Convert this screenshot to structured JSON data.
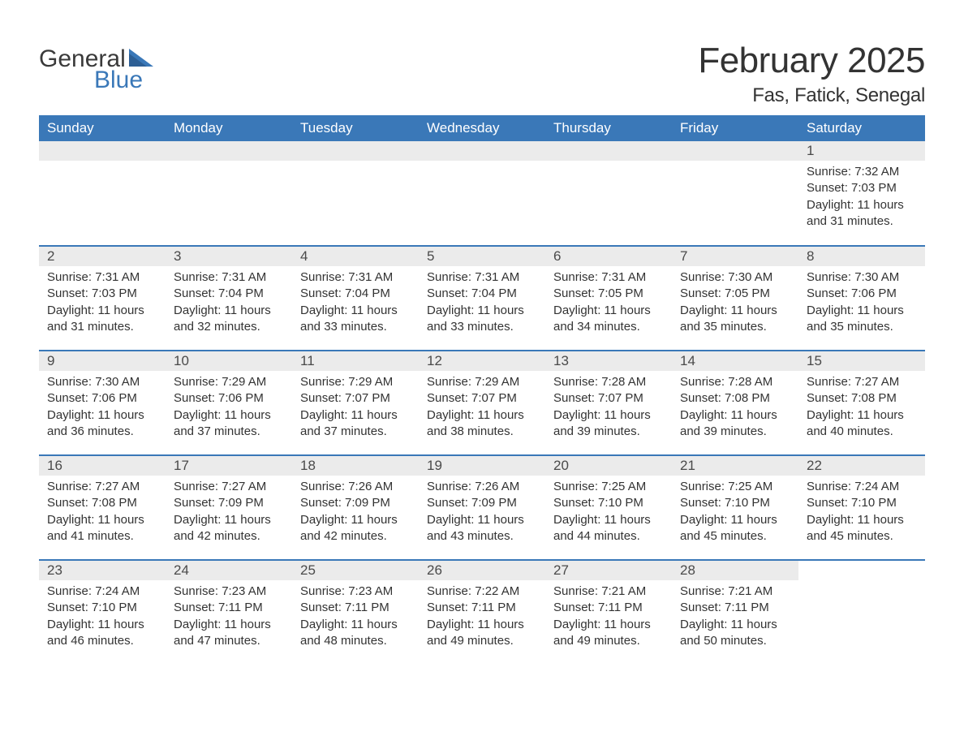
{
  "logo": {
    "text1": "General",
    "text2": "Blue",
    "flag_color": "#3a78b8"
  },
  "title": "February 2025",
  "location": "Fas, Fatick, Senegal",
  "colors": {
    "header_bg": "#3a78b8",
    "header_text": "#ffffff",
    "daynum_bg": "#ebebeb",
    "border": "#3a78b8",
    "text": "#333333"
  },
  "day_names": [
    "Sunday",
    "Monday",
    "Tuesday",
    "Wednesday",
    "Thursday",
    "Friday",
    "Saturday"
  ],
  "weeks": [
    [
      null,
      null,
      null,
      null,
      null,
      null,
      {
        "n": "1",
        "sr": "Sunrise: 7:32 AM",
        "ss": "Sunset: 7:03 PM",
        "dl": "Daylight: 11 hours and 31 minutes."
      }
    ],
    [
      {
        "n": "2",
        "sr": "Sunrise: 7:31 AM",
        "ss": "Sunset: 7:03 PM",
        "dl": "Daylight: 11 hours and 31 minutes."
      },
      {
        "n": "3",
        "sr": "Sunrise: 7:31 AM",
        "ss": "Sunset: 7:04 PM",
        "dl": "Daylight: 11 hours and 32 minutes."
      },
      {
        "n": "4",
        "sr": "Sunrise: 7:31 AM",
        "ss": "Sunset: 7:04 PM",
        "dl": "Daylight: 11 hours and 33 minutes."
      },
      {
        "n": "5",
        "sr": "Sunrise: 7:31 AM",
        "ss": "Sunset: 7:04 PM",
        "dl": "Daylight: 11 hours and 33 minutes."
      },
      {
        "n": "6",
        "sr": "Sunrise: 7:31 AM",
        "ss": "Sunset: 7:05 PM",
        "dl": "Daylight: 11 hours and 34 minutes."
      },
      {
        "n": "7",
        "sr": "Sunrise: 7:30 AM",
        "ss": "Sunset: 7:05 PM",
        "dl": "Daylight: 11 hours and 35 minutes."
      },
      {
        "n": "8",
        "sr": "Sunrise: 7:30 AM",
        "ss": "Sunset: 7:06 PM",
        "dl": "Daylight: 11 hours and 35 minutes."
      }
    ],
    [
      {
        "n": "9",
        "sr": "Sunrise: 7:30 AM",
        "ss": "Sunset: 7:06 PM",
        "dl": "Daylight: 11 hours and 36 minutes."
      },
      {
        "n": "10",
        "sr": "Sunrise: 7:29 AM",
        "ss": "Sunset: 7:06 PM",
        "dl": "Daylight: 11 hours and 37 minutes."
      },
      {
        "n": "11",
        "sr": "Sunrise: 7:29 AM",
        "ss": "Sunset: 7:07 PM",
        "dl": "Daylight: 11 hours and 37 minutes."
      },
      {
        "n": "12",
        "sr": "Sunrise: 7:29 AM",
        "ss": "Sunset: 7:07 PM",
        "dl": "Daylight: 11 hours and 38 minutes."
      },
      {
        "n": "13",
        "sr": "Sunrise: 7:28 AM",
        "ss": "Sunset: 7:07 PM",
        "dl": "Daylight: 11 hours and 39 minutes."
      },
      {
        "n": "14",
        "sr": "Sunrise: 7:28 AM",
        "ss": "Sunset: 7:08 PM",
        "dl": "Daylight: 11 hours and 39 minutes."
      },
      {
        "n": "15",
        "sr": "Sunrise: 7:27 AM",
        "ss": "Sunset: 7:08 PM",
        "dl": "Daylight: 11 hours and 40 minutes."
      }
    ],
    [
      {
        "n": "16",
        "sr": "Sunrise: 7:27 AM",
        "ss": "Sunset: 7:08 PM",
        "dl": "Daylight: 11 hours and 41 minutes."
      },
      {
        "n": "17",
        "sr": "Sunrise: 7:27 AM",
        "ss": "Sunset: 7:09 PM",
        "dl": "Daylight: 11 hours and 42 minutes."
      },
      {
        "n": "18",
        "sr": "Sunrise: 7:26 AM",
        "ss": "Sunset: 7:09 PM",
        "dl": "Daylight: 11 hours and 42 minutes."
      },
      {
        "n": "19",
        "sr": "Sunrise: 7:26 AM",
        "ss": "Sunset: 7:09 PM",
        "dl": "Daylight: 11 hours and 43 minutes."
      },
      {
        "n": "20",
        "sr": "Sunrise: 7:25 AM",
        "ss": "Sunset: 7:10 PM",
        "dl": "Daylight: 11 hours and 44 minutes."
      },
      {
        "n": "21",
        "sr": "Sunrise: 7:25 AM",
        "ss": "Sunset: 7:10 PM",
        "dl": "Daylight: 11 hours and 45 minutes."
      },
      {
        "n": "22",
        "sr": "Sunrise: 7:24 AM",
        "ss": "Sunset: 7:10 PM",
        "dl": "Daylight: 11 hours and 45 minutes."
      }
    ],
    [
      {
        "n": "23",
        "sr": "Sunrise: 7:24 AM",
        "ss": "Sunset: 7:10 PM",
        "dl": "Daylight: 11 hours and 46 minutes."
      },
      {
        "n": "24",
        "sr": "Sunrise: 7:23 AM",
        "ss": "Sunset: 7:11 PM",
        "dl": "Daylight: 11 hours and 47 minutes."
      },
      {
        "n": "25",
        "sr": "Sunrise: 7:23 AM",
        "ss": "Sunset: 7:11 PM",
        "dl": "Daylight: 11 hours and 48 minutes."
      },
      {
        "n": "26",
        "sr": "Sunrise: 7:22 AM",
        "ss": "Sunset: 7:11 PM",
        "dl": "Daylight: 11 hours and 49 minutes."
      },
      {
        "n": "27",
        "sr": "Sunrise: 7:21 AM",
        "ss": "Sunset: 7:11 PM",
        "dl": "Daylight: 11 hours and 49 minutes."
      },
      {
        "n": "28",
        "sr": "Sunrise: 7:21 AM",
        "ss": "Sunset: 7:11 PM",
        "dl": "Daylight: 11 hours and 50 minutes."
      },
      null
    ]
  ]
}
